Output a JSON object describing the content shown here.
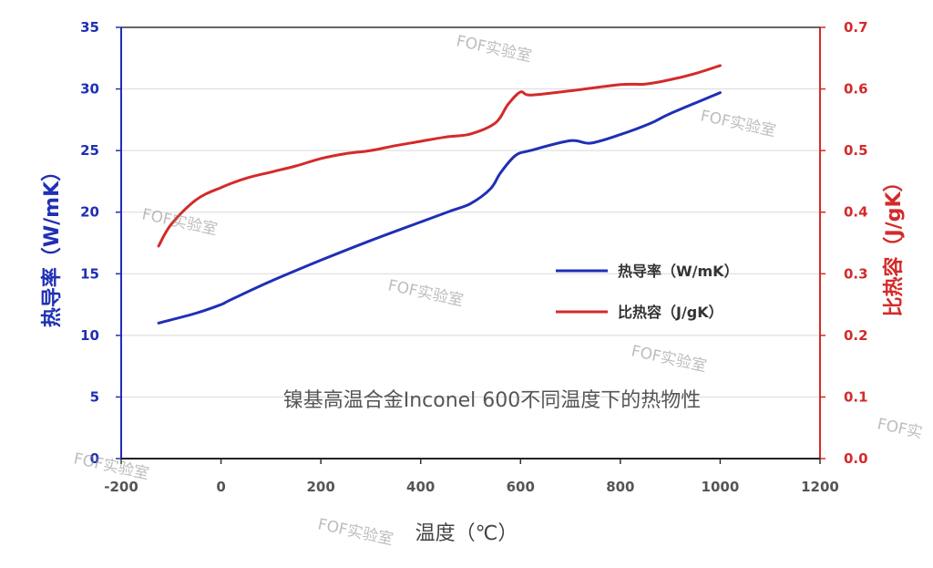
{
  "chart_data": {
    "type": "line",
    "annotation": "镍基高温合金Inconel 600不同温度下的热物性",
    "xlabel": "温度（℃）",
    "ylabel_left": "热导率（W/mK）",
    "ylabel_right": "比热容（J/gK）",
    "xlim": [
      -200,
      1200
    ],
    "ylim_left": [
      0,
      35
    ],
    "ylim_right": [
      0.0,
      0.7
    ],
    "x_ticks": [
      "-200",
      "0",
      "200",
      "400",
      "600",
      "800",
      "1000",
      "1200"
    ],
    "y_left_ticks": [
      "0",
      "5",
      "10",
      "15",
      "20",
      "25",
      "30",
      "35"
    ],
    "y_right_ticks": [
      "0.0",
      "0.1",
      "0.2",
      "0.3",
      "0.4",
      "0.5",
      "0.6",
      "0.7"
    ],
    "grid": "horizontal",
    "legend_position": "center-right",
    "series": [
      {
        "name": "热导率（W/mK）",
        "axis": "left",
        "color": "#1f2fb5",
        "x": [
          -125,
          -50,
          0,
          20,
          100,
          200,
          300,
          400,
          460,
          500,
          540,
          560,
          590,
          620,
          700,
          740,
          800,
          860,
          900,
          1000
        ],
        "y": [
          11.0,
          11.8,
          12.5,
          12.9,
          14.4,
          16.1,
          17.7,
          19.2,
          20.1,
          20.7,
          21.9,
          23.2,
          24.6,
          25.0,
          25.8,
          25.6,
          26.3,
          27.2,
          28.0,
          29.7
        ]
      },
      {
        "name": "比热容（J/gK）",
        "axis": "right",
        "color": "#d42a2a",
        "x": [
          -125,
          -100,
          -50,
          0,
          50,
          100,
          150,
          200,
          250,
          300,
          350,
          400,
          450,
          500,
          550,
          575,
          600,
          620,
          700,
          800,
          850,
          900,
          950,
          1000
        ],
        "y": [
          0.345,
          0.38,
          0.42,
          0.44,
          0.455,
          0.465,
          0.475,
          0.487,
          0.495,
          0.5,
          0.508,
          0.515,
          0.522,
          0.527,
          0.545,
          0.575,
          0.595,
          0.59,
          0.597,
          0.607,
          0.608,
          0.615,
          0.625,
          0.638
        ]
      }
    ]
  },
  "watermarks": [
    "FOF实验室",
    "FOF实验室",
    "FOF实验室",
    "FOF实验室",
    "FOF实验室",
    "FOF实验室",
    "FOF实",
    "FOF实验室"
  ]
}
